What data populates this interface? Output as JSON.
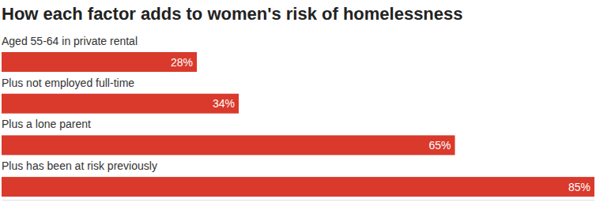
{
  "chart_data": {
    "type": "bar",
    "orientation": "horizontal",
    "title": "How each factor adds to women's risk of homelessness",
    "categories": [
      "Aged 55-64 in private rental",
      "Plus not employed full-time",
      "Plus a lone parent",
      "Plus has been at risk previously"
    ],
    "values": [
      28,
      34,
      65,
      85
    ],
    "value_labels": [
      "28%",
      "34%",
      "65%",
      "85%"
    ],
    "color": "#d93a2c",
    "xlim": [
      0,
      85
    ],
    "xticks": [],
    "data_labels": true,
    "tick_labels": false,
    "grid": false
  }
}
